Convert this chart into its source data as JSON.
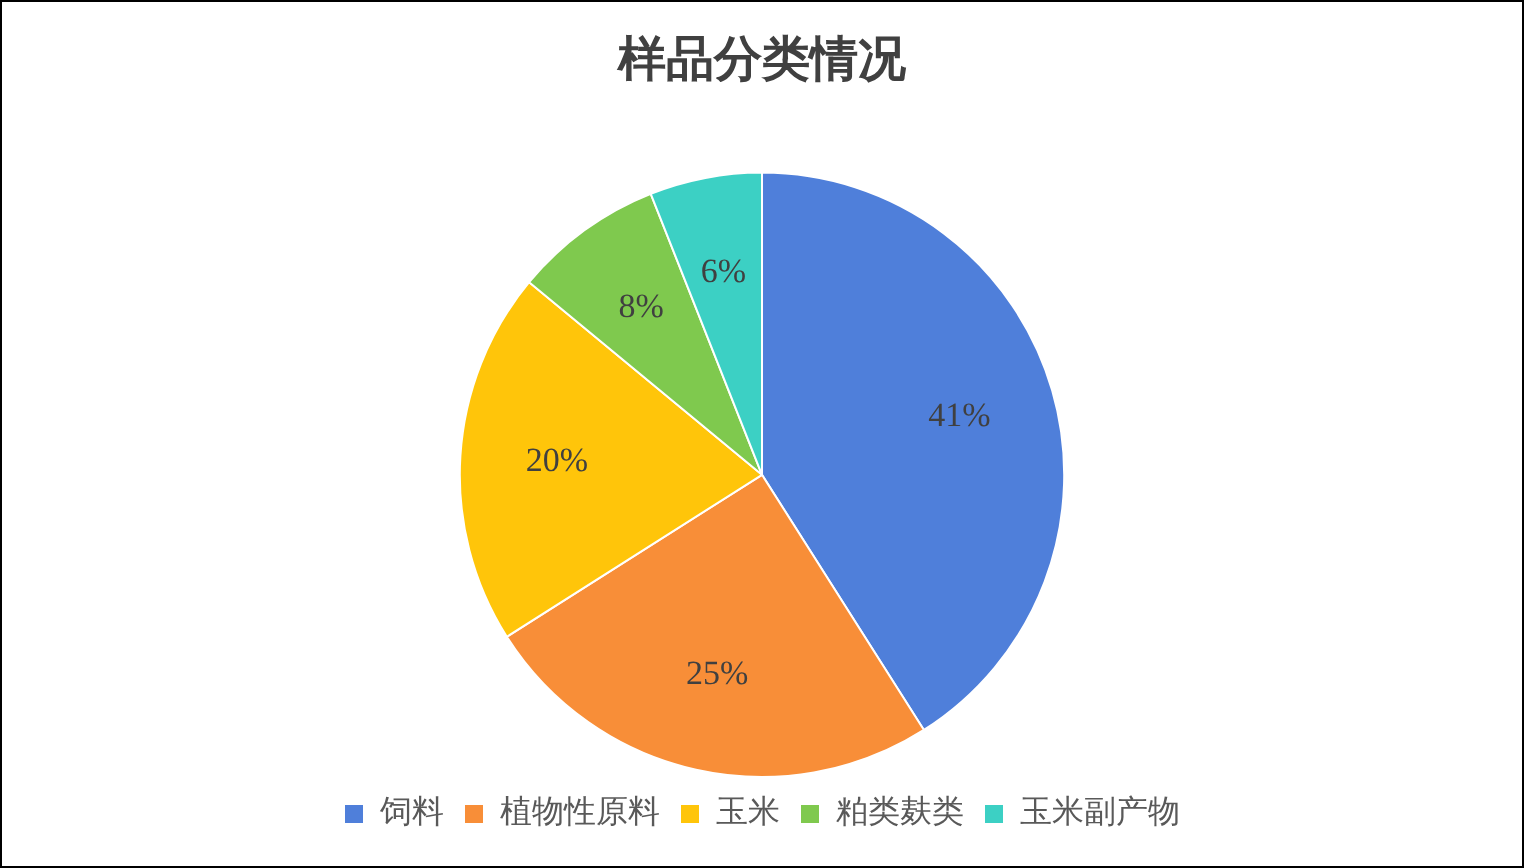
{
  "chart_data": {
    "type": "pie",
    "title": "样品分类情况",
    "categories": [
      "饲料",
      "植物性原料",
      "玉米",
      "粕类麸类",
      "玉米副产物"
    ],
    "values": [
      41,
      25,
      20,
      8,
      6
    ],
    "colors": [
      "#4f7fda",
      "#f88e38",
      "#ffc50a",
      "#7fc94e",
      "#3cd0c4"
    ],
    "value_labels": [
      "41%",
      "25%",
      "20%",
      "8%",
      "6%"
    ],
    "legend": "bottom"
  }
}
